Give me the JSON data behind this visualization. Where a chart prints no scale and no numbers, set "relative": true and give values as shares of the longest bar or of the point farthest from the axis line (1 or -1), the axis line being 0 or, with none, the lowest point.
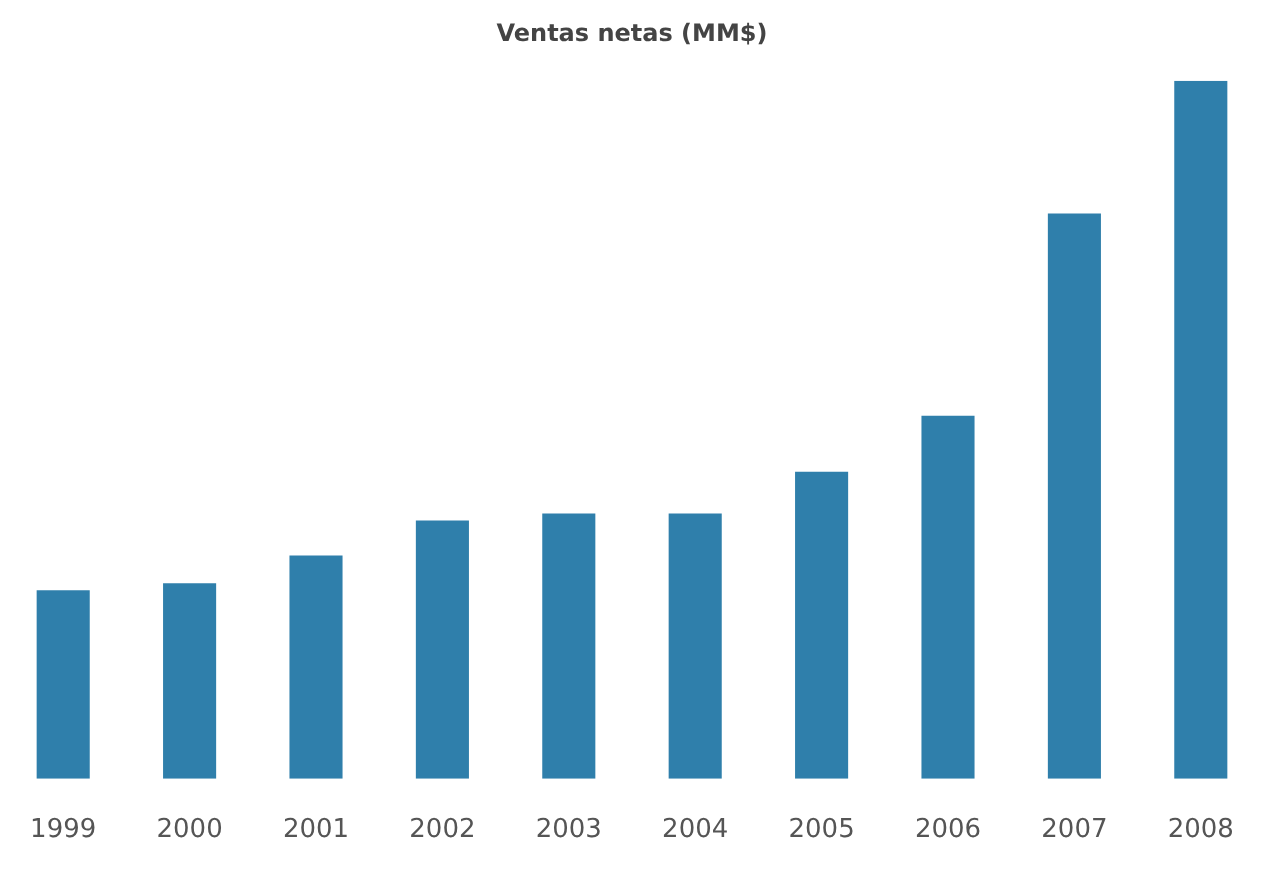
{
  "chart_data": {
    "type": "bar",
    "title": "Ventas netas (MM$)",
    "categories": [
      "1999",
      "2000",
      "2001",
      "2002",
      "2003",
      "2004",
      "2005",
      "2006",
      "2007",
      "2008"
    ],
    "values": [
      0.27,
      0.28,
      0.32,
      0.37,
      0.38,
      0.38,
      0.44,
      0.52,
      0.81,
      1
    ],
    "color": "#2f7fab",
    "relative": true,
    "grid": false,
    "legend": false
  }
}
